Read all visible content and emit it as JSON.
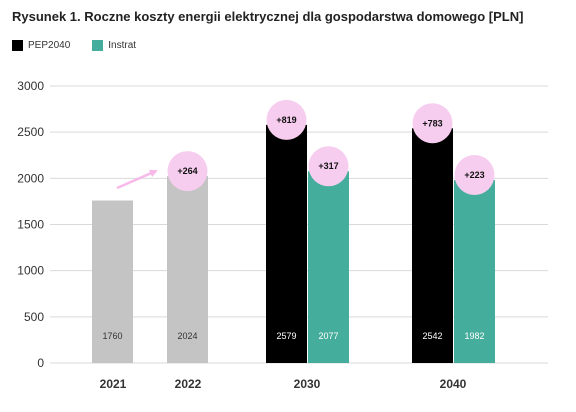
{
  "title": "Rysunek 1. Roczne koszty energii elektrycznej dla gospodarstwa domowego [PLN]",
  "legend": [
    {
      "name": "PEP2040",
      "color": "#000000"
    },
    {
      "name": "Instrat",
      "color": "#45ad9b"
    }
  ],
  "colors": {
    "historical": "#c4c4c4",
    "badge": "#f7cdef",
    "arrow": "#f7b9e9",
    "grid": "#d9d9d9"
  },
  "chart_data": {
    "type": "bar",
    "ylim": [
      0,
      3000
    ],
    "yticks": [
      0,
      500,
      1000,
      1500,
      2000,
      2500,
      3000
    ],
    "grid": true,
    "legend_position": "top-left",
    "categories": [
      "2021",
      "2022",
      "2030",
      "2040"
    ],
    "bars": [
      {
        "category": "2021",
        "series": "historical",
        "value": 1760,
        "label": "1760"
      },
      {
        "category": "2022",
        "series": "historical",
        "value": 2024,
        "label": "2024"
      },
      {
        "category": "2030",
        "series": "PEP2040",
        "value": 2579,
        "label": "2579"
      },
      {
        "category": "2030",
        "series": "Instrat",
        "value": 2077,
        "label": "2077"
      },
      {
        "category": "2040",
        "series": "PEP2040",
        "value": 2542,
        "label": "2542"
      },
      {
        "category": "2040",
        "series": "Instrat",
        "value": 1982,
        "label": "1982"
      }
    ],
    "annotations": [
      {
        "bar_index": 1,
        "text": "+264"
      },
      {
        "bar_index": 2,
        "text": "+819"
      },
      {
        "bar_index": 3,
        "text": "+317"
      },
      {
        "bar_index": 4,
        "text": "+783"
      },
      {
        "bar_index": 5,
        "text": "+223"
      }
    ],
    "arrow": {
      "from_bar_index": 0,
      "to_bar_index": 1
    }
  }
}
